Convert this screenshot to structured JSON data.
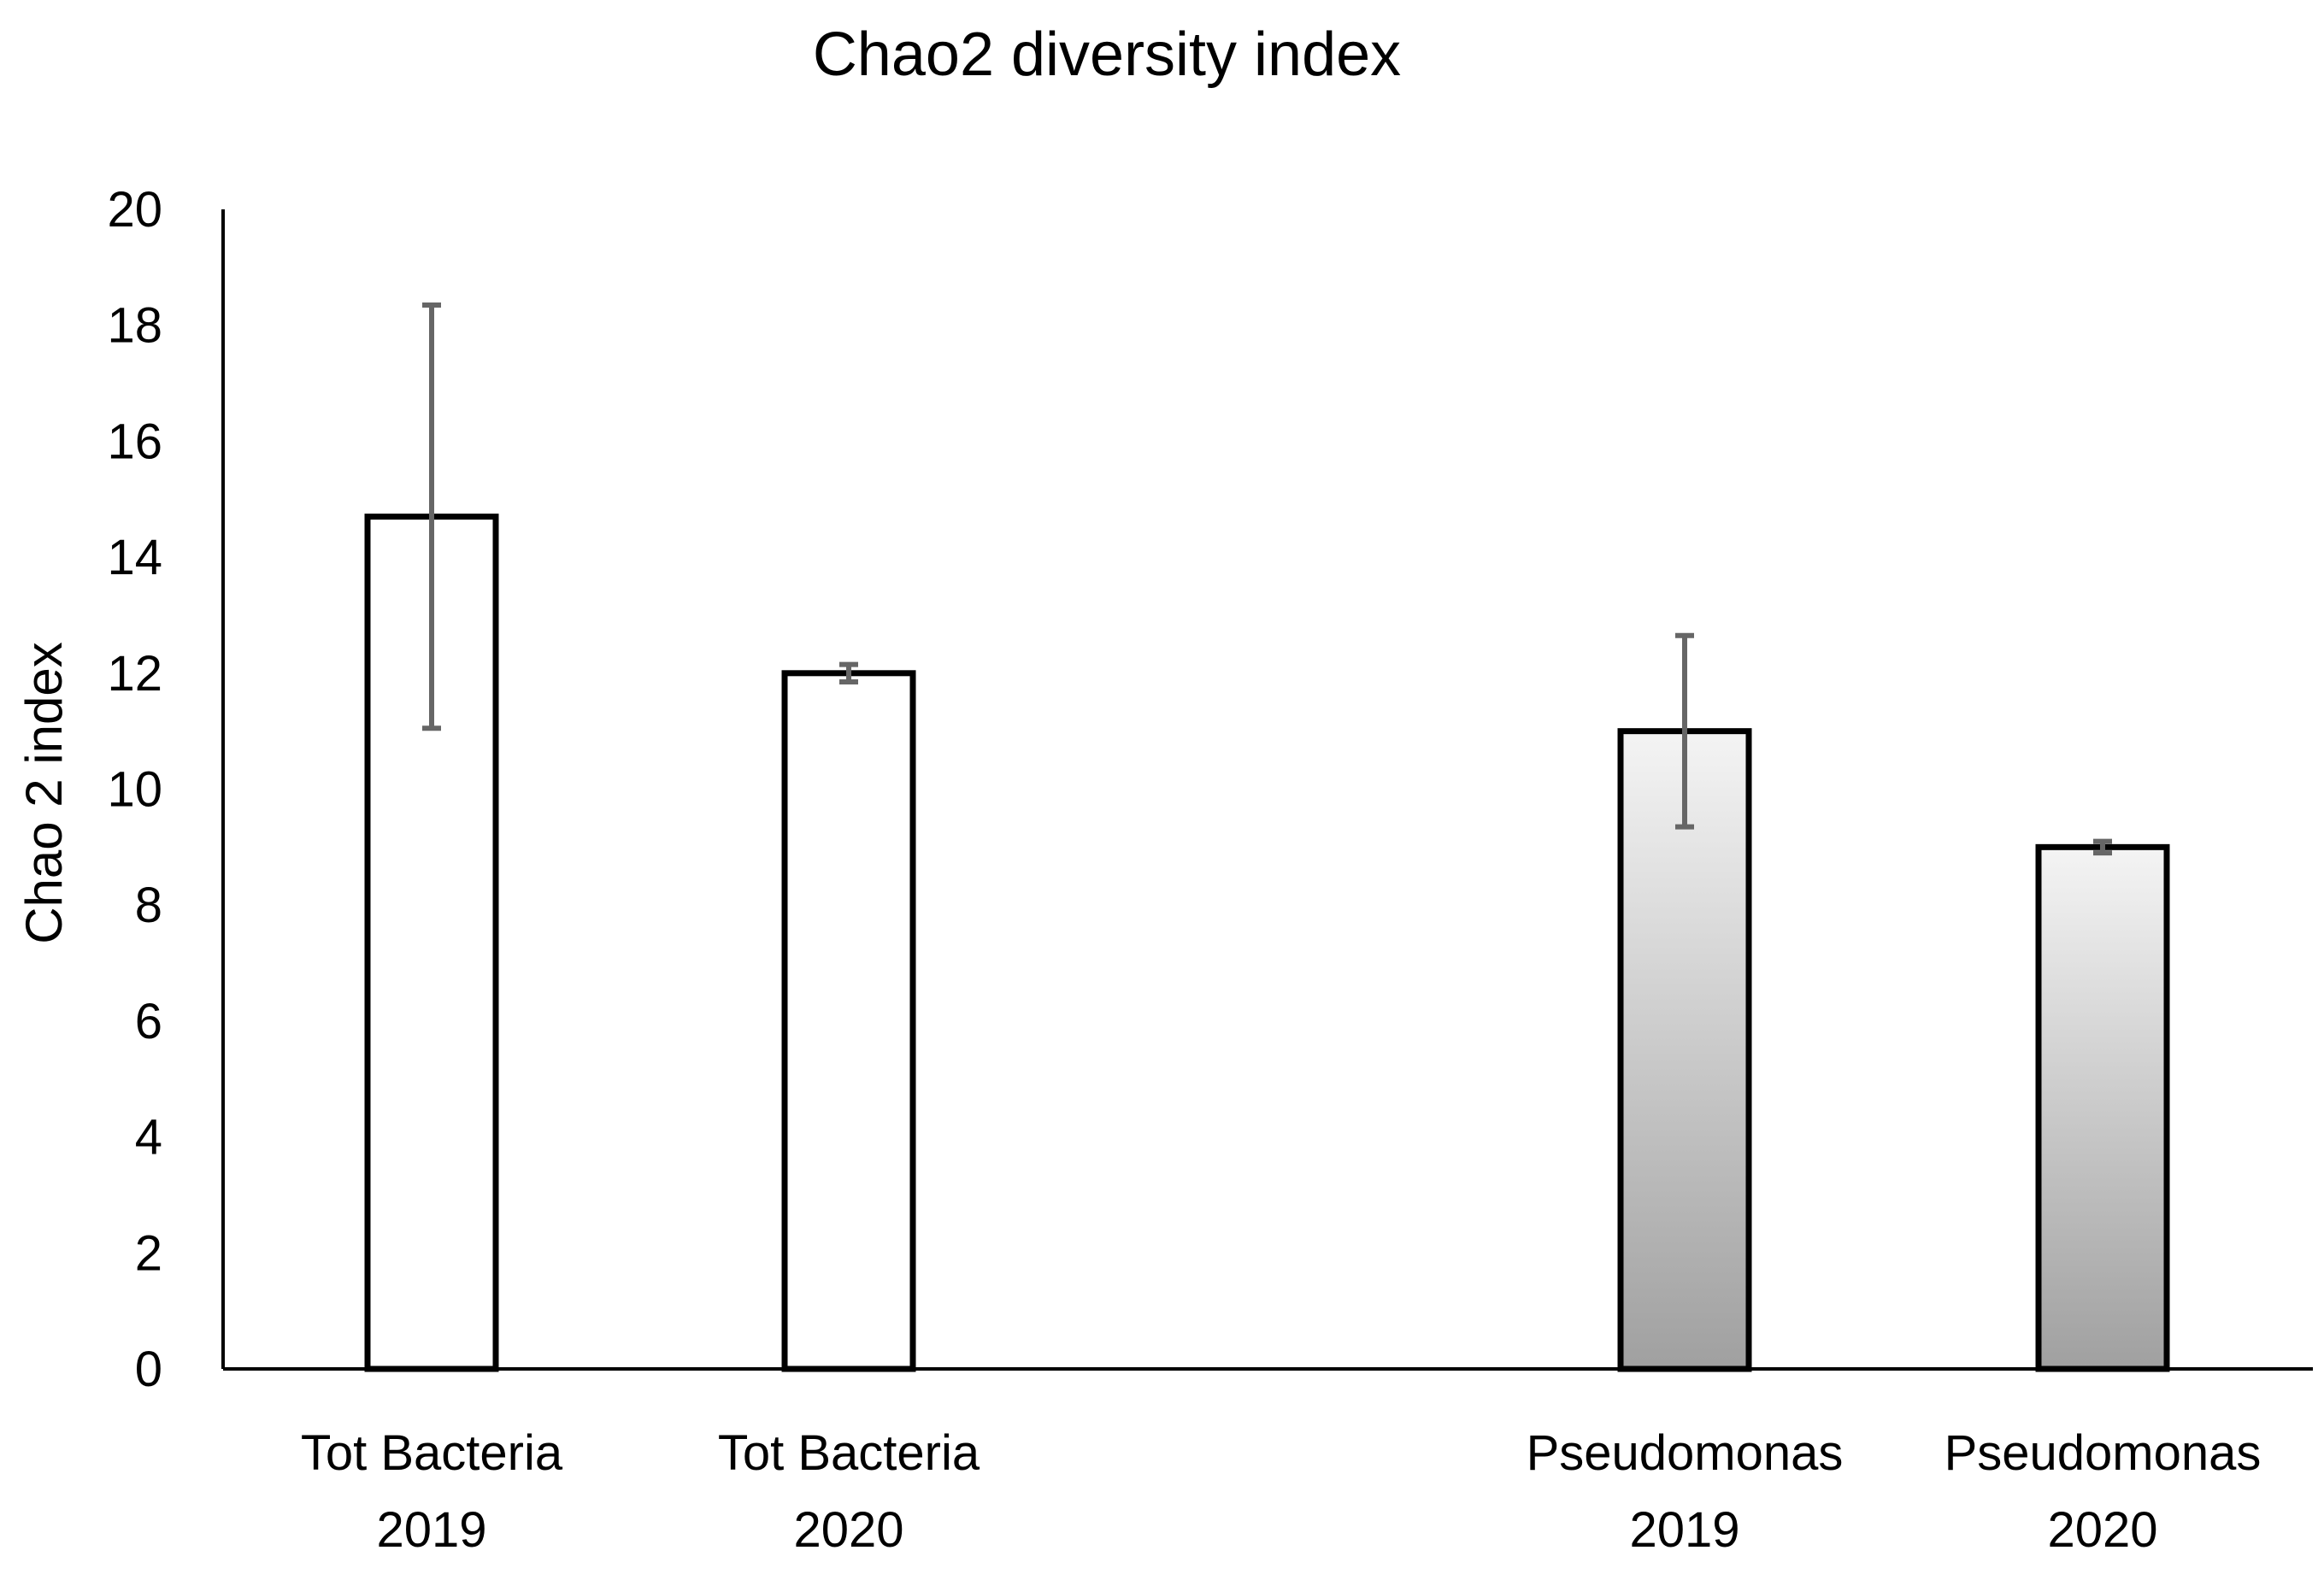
{
  "chart_data": {
    "type": "bar",
    "title": "Chao2 diversity index",
    "xlabel": "",
    "ylabel": "Chao 2 index",
    "ylim": [
      0,
      20
    ],
    "yticks": [
      0,
      2,
      4,
      6,
      8,
      10,
      12,
      14,
      16,
      18,
      20
    ],
    "grid": false,
    "categories": [
      [
        "Tot Bacteria",
        "2019"
      ],
      [
        "Tot Bacteria",
        "2020"
      ],
      [
        "Pseudomonas",
        "2019"
      ],
      [
        "Pseudomonas",
        "2020"
      ]
    ],
    "values": [
      14.7,
      12.0,
      11.0,
      9.0
    ],
    "error_bars": [
      3.65,
      0.15,
      1.65,
      0.1
    ],
    "fills": [
      "white",
      "white",
      "gradient",
      "gradient"
    ],
    "colors": {
      "bar_outline": "#000000",
      "error_bar": "#666666",
      "gradient_top": "#f4f4f4",
      "gradient_bottom": "#a0a0a0"
    }
  }
}
